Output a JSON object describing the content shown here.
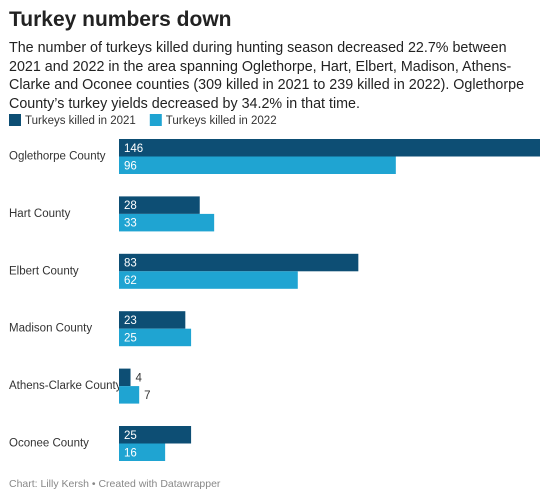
{
  "chart_data": {
    "type": "grouped-hbar",
    "title": "Turkey numbers down",
    "subtitle": "The number of turkeys killed during hunting season decreased 22.7% between 2021 and 2022 in the area spanning Oglethorpe, Hart, Elbert, Madison, Athens-Clarke and Oconee counties (309 killed in 2021 to 239 killed in 2022). Oglethorpe County’s turkey yields decreased by 34.2% in that time.",
    "categories": [
      "Oglethorpe County",
      "Hart County",
      "Elbert County",
      "Madison County",
      "Athens-Clarke County",
      "Oconee County"
    ],
    "series": [
      {
        "name": "Turkeys killed in 2021",
        "color": "#0d4e74",
        "values": [
          146,
          28,
          83,
          23,
          4,
          25
        ]
      },
      {
        "name": "Turkeys killed in 2022",
        "color": "#1fa4d2",
        "values": [
          96,
          33,
          62,
          25,
          7,
          16
        ]
      }
    ],
    "footer": "Chart: Lilly Kersh • Created with Datawrapper"
  }
}
